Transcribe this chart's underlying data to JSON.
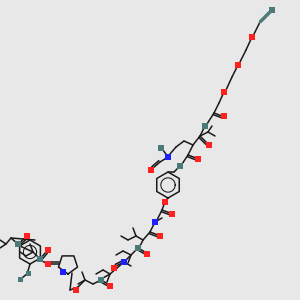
{
  "bg": "#e8e8e8",
  "O_col": "#ff2020",
  "N_col": "#2020ff",
  "gray_col": "#4a7a7a",
  "bond_col": "#1a1a1a",
  "bw": 1.1
}
